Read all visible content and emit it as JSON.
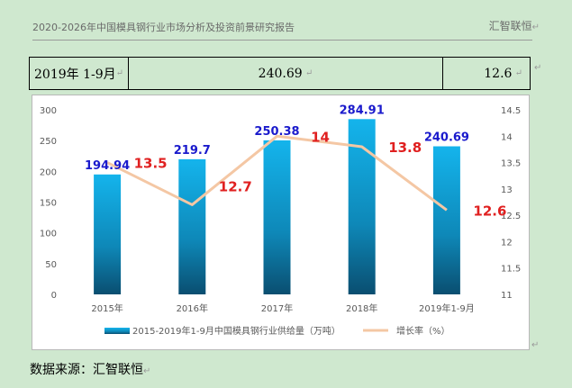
{
  "header": {
    "title": "2020-2026年中国模具钢行业市场分析及投资前景研究报告",
    "brand": "汇智联恒"
  },
  "table": {
    "period": "2019年 1-9月",
    "supply": "240.69",
    "rate": "12.6"
  },
  "chart_data": {
    "type": "bar",
    "categories": [
      "2015年",
      "2016年",
      "2017年",
      "2018年",
      "2019年1-9月"
    ],
    "series": [
      {
        "name": "2015-2019年1-9月中国模具钢行业供给量（万吨）",
        "type": "bar",
        "axis": "left",
        "values": [
          194.94,
          219.7,
          250.38,
          284.91,
          240.69
        ],
        "labels": [
          "194.94",
          "219.7",
          "250.38",
          "284.91",
          "240.69"
        ],
        "color": "#1aa3e0"
      },
      {
        "name": "增长率（%）",
        "type": "line",
        "axis": "right",
        "values": [
          13.5,
          12.7,
          14,
          13.8,
          12.6
        ],
        "labels": [
          "13.5",
          "12.7",
          "14",
          "13.8",
          "12.6"
        ],
        "color": "#f4c7a4"
      }
    ],
    "y_left": {
      "min": 0,
      "max": 300,
      "ticks": [
        "0",
        "50",
        "100",
        "150",
        "200",
        "250",
        "300"
      ]
    },
    "y_right": {
      "min": 11,
      "max": 14.5,
      "ticks": [
        "11",
        "11.5",
        "12",
        "12.5",
        "13",
        "13.5",
        "14",
        "14.5"
      ]
    },
    "grid": false,
    "legend": "bottom"
  },
  "source": "数据来源：汇智联恒"
}
